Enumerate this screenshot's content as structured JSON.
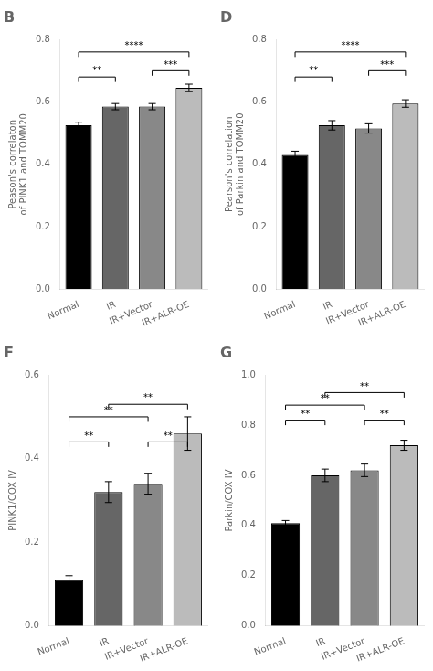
{
  "chart_data": [
    {
      "type": "bar",
      "title": "B",
      "ylabel": "Peason's correlaton\nof PINK1 and TOMM20",
      "categories": [
        "Normal",
        "IR",
        "IR+Vector",
        "IR+ALR-OE"
      ],
      "values": [
        0.525,
        0.585,
        0.585,
        0.645
      ],
      "errors": [
        0.01,
        0.01,
        0.01,
        0.012
      ],
      "colors": [
        "#000000",
        "#666666",
        "#888888",
        "#bbbbbb"
      ],
      "ylim": [
        0.0,
        0.8
      ],
      "yticks": [
        {
          "value": 0.0,
          "label": "0.0"
        },
        0.2,
        0.4,
        0.6,
        0.8
      ],
      "grid": false,
      "annotations": [
        {
          "from": "Normal",
          "to": "IR",
          "y": 0.68,
          "text": "**"
        },
        {
          "from": "IR+Vector",
          "to": "IR+ALR-OE",
          "y": 0.7,
          "text": "***"
        },
        {
          "from": "Normal",
          "to": "IR+ALR-OE",
          "y": 0.76,
          "text": "****"
        }
      ]
    },
    {
      "type": "bar",
      "title": "D",
      "ylabel": "Pearson's correlation\nof Parkin and TOMM20",
      "categories": [
        "Normal",
        "IR",
        "IR+Vector",
        "IR+ALR-OE"
      ],
      "values": [
        0.43,
        0.525,
        0.515,
        0.595
      ],
      "errors": [
        0.012,
        0.015,
        0.015,
        0.012
      ],
      "colors": [
        "#000000",
        "#666666",
        "#888888",
        "#bbbbbb"
      ],
      "ylim": [
        0.0,
        0.8
      ],
      "yticks": [
        {
          "value": 0.0,
          "label": "0.0"
        },
        0.2,
        0.4,
        0.6,
        0.8
      ],
      "grid": false,
      "annotations": [
        {
          "from": "Normal",
          "to": "IR",
          "y": 0.68,
          "text": "**"
        },
        {
          "from": "IR+Vector",
          "to": "IR+ALR-OE",
          "y": 0.7,
          "text": "***"
        },
        {
          "from": "Normal",
          "to": "IR+ALR-OE",
          "y": 0.76,
          "text": "****"
        }
      ]
    },
    {
      "type": "bar",
      "title": "F",
      "ylabel": "PINK1/COX IV",
      "categories": [
        "Normal",
        "IR",
        "IR+Vector",
        "IR+ALR-OE"
      ],
      "values": [
        0.11,
        0.32,
        0.34,
        0.46
      ],
      "errors": [
        0.01,
        0.025,
        0.025,
        0.04
      ],
      "colors": [
        "#000000",
        "#666666",
        "#888888",
        "#bbbbbb"
      ],
      "ylim": [
        0.0,
        0.6
      ],
      "yticks": [
        {
          "value": 0.0,
          "label": "0.0"
        },
        0.2,
        0.4,
        0.6
      ],
      "grid": false,
      "annotations": [
        {
          "from": "Normal",
          "to": "IR",
          "y": 0.44,
          "text": "**"
        },
        {
          "from": "Normal",
          "to": "IR+Vector",
          "y": 0.5,
          "text": "**"
        },
        {
          "from": "IR",
          "to": "IR+ALR-OE",
          "y": 0.53,
          "text": "**"
        },
        {
          "from": "IR+Vector",
          "to": "IR+ALR-OE",
          "y": 0.44,
          "text": "**"
        }
      ]
    },
    {
      "type": "bar",
      "title": "G",
      "ylabel": "Parkin/COX IV",
      "categories": [
        "Normal",
        "IR",
        "IR+Vector",
        "IR+ALR-OE"
      ],
      "values": [
        0.41,
        0.6,
        0.62,
        0.72
      ],
      "errors": [
        0.01,
        0.025,
        0.025,
        0.02
      ],
      "colors": [
        "#000000",
        "#666666",
        "#888888",
        "#bbbbbb"
      ],
      "ylim": [
        0.0,
        1.0
      ],
      "yticks": [
        {
          "value": 0.0,
          "label": "0.0"
        },
        0.2,
        0.4,
        0.6,
        0.8,
        {
          "value": 1.0,
          "label": "1.0"
        }
      ],
      "grid": false,
      "annotations": [
        {
          "from": "Normal",
          "to": "IR",
          "y": 0.82,
          "text": "**"
        },
        {
          "from": "Normal",
          "to": "IR+Vector",
          "y": 0.88,
          "text": "**"
        },
        {
          "from": "IR",
          "to": "IR+ALR-OE",
          "y": 0.93,
          "text": "**"
        },
        {
          "from": "IR+Vector",
          "to": "IR+ALR-OE",
          "y": 0.82,
          "text": "**"
        }
      ]
    }
  ]
}
